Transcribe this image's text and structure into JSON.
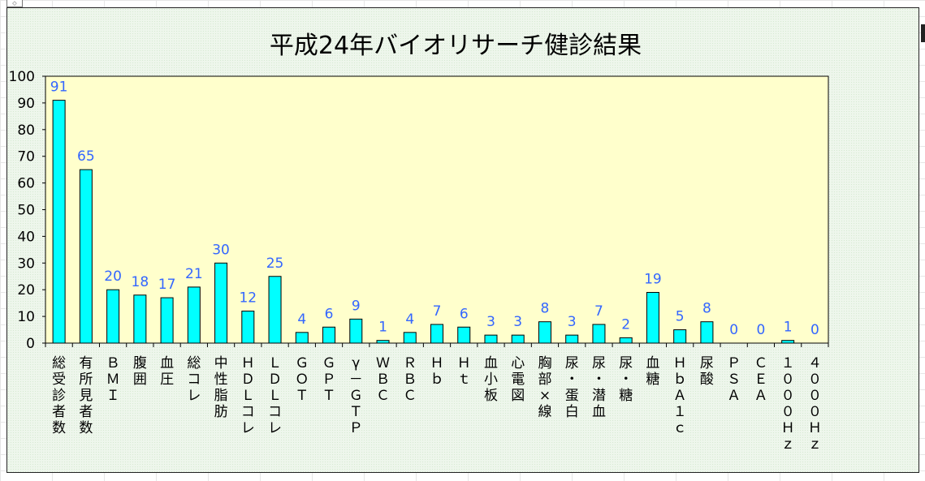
{
  "chart_data": {
    "type": "bar",
    "title": "平成24年バイオリサーチ健診結果",
    "categories": [
      "総受診者数",
      "有所見者数",
      "BMI",
      "腹囲",
      "血圧",
      "総コレ",
      "中性脂肪",
      "HDLコレ",
      "LDLコレ",
      "GOT",
      "GPT",
      "γ-GTP",
      "WBC",
      "RBC",
      "Hb",
      "Ht",
      "血小板",
      "心電図",
      "胸部×線",
      "尿・蛋白",
      "尿・潜血",
      "尿・糖",
      "血糖",
      "HbA1c",
      "尿酸",
      "PSA",
      "CEA",
      "1000Hz",
      "4000Hz"
    ],
    "category_labels": [
      [
        "総",
        "受",
        "診",
        "者",
        "数"
      ],
      [
        "有",
        "所",
        "見",
        "者",
        "数"
      ],
      [
        "Ｂ",
        "Ｍ",
        "Ｉ"
      ],
      [
        "腹",
        "囲"
      ],
      [
        "血",
        "圧"
      ],
      [
        "総",
        "コ",
        "レ"
      ],
      [
        "中",
        "性",
        "脂",
        "肪"
      ],
      [
        "Ｈ",
        "Ｄ",
        "Ｌ",
        "コ",
        "レ"
      ],
      [
        "Ｌ",
        "Ｄ",
        "Ｌ",
        "コ",
        "レ"
      ],
      [
        "Ｇ",
        "Ｏ",
        "Ｔ"
      ],
      [
        "Ｇ",
        "Ｐ",
        "Ｔ"
      ],
      [
        "γ",
        "－",
        "Ｇ",
        "Ｔ",
        "Ｐ"
      ],
      [
        "Ｗ",
        "Ｂ",
        "Ｃ"
      ],
      [
        "Ｒ",
        "Ｂ",
        "Ｃ"
      ],
      [
        "Ｈ",
        "ｂ"
      ],
      [
        "Ｈ",
        "ｔ"
      ],
      [
        "血",
        "小",
        "板"
      ],
      [
        "心",
        "電",
        "図"
      ],
      [
        "胸",
        "部",
        "×",
        "線"
      ],
      [
        "尿",
        "・",
        "蛋",
        "白"
      ],
      [
        "尿",
        "・",
        "潜",
        "血"
      ],
      [
        "尿",
        "・",
        "糖"
      ],
      [
        "血",
        "糖"
      ],
      [
        "Ｈ",
        "ｂ",
        "Ａ",
        "１",
        "ｃ"
      ],
      [
        "尿",
        "酸"
      ],
      [
        "Ｐ",
        "Ｓ",
        "Ａ"
      ],
      [
        "Ｃ",
        "Ｅ",
        "Ａ"
      ],
      [
        "１",
        "０",
        "０",
        "０",
        "Ｈ",
        "ｚ"
      ],
      [
        "４",
        "０",
        "０",
        "０",
        "Ｈ",
        "ｚ"
      ]
    ],
    "values": [
      91,
      65,
      20,
      18,
      17,
      21,
      30,
      12,
      25,
      4,
      6,
      9,
      1,
      4,
      7,
      6,
      3,
      3,
      8,
      3,
      7,
      2,
      19,
      5,
      8,
      0,
      0,
      1,
      0
    ],
    "ylim": [
      0,
      100
    ],
    "yticks": [
      0,
      10,
      20,
      30,
      40,
      50,
      60,
      70,
      80,
      90,
      100
    ],
    "xlabel": "",
    "ylabel": "",
    "grid": false,
    "legend": "none",
    "colors": {
      "bar_fill": "#00ffff",
      "bar_stroke": "#000000",
      "plot_background": "#ffffcc",
      "data_label": "#3366ff",
      "text": "#000000"
    }
  }
}
